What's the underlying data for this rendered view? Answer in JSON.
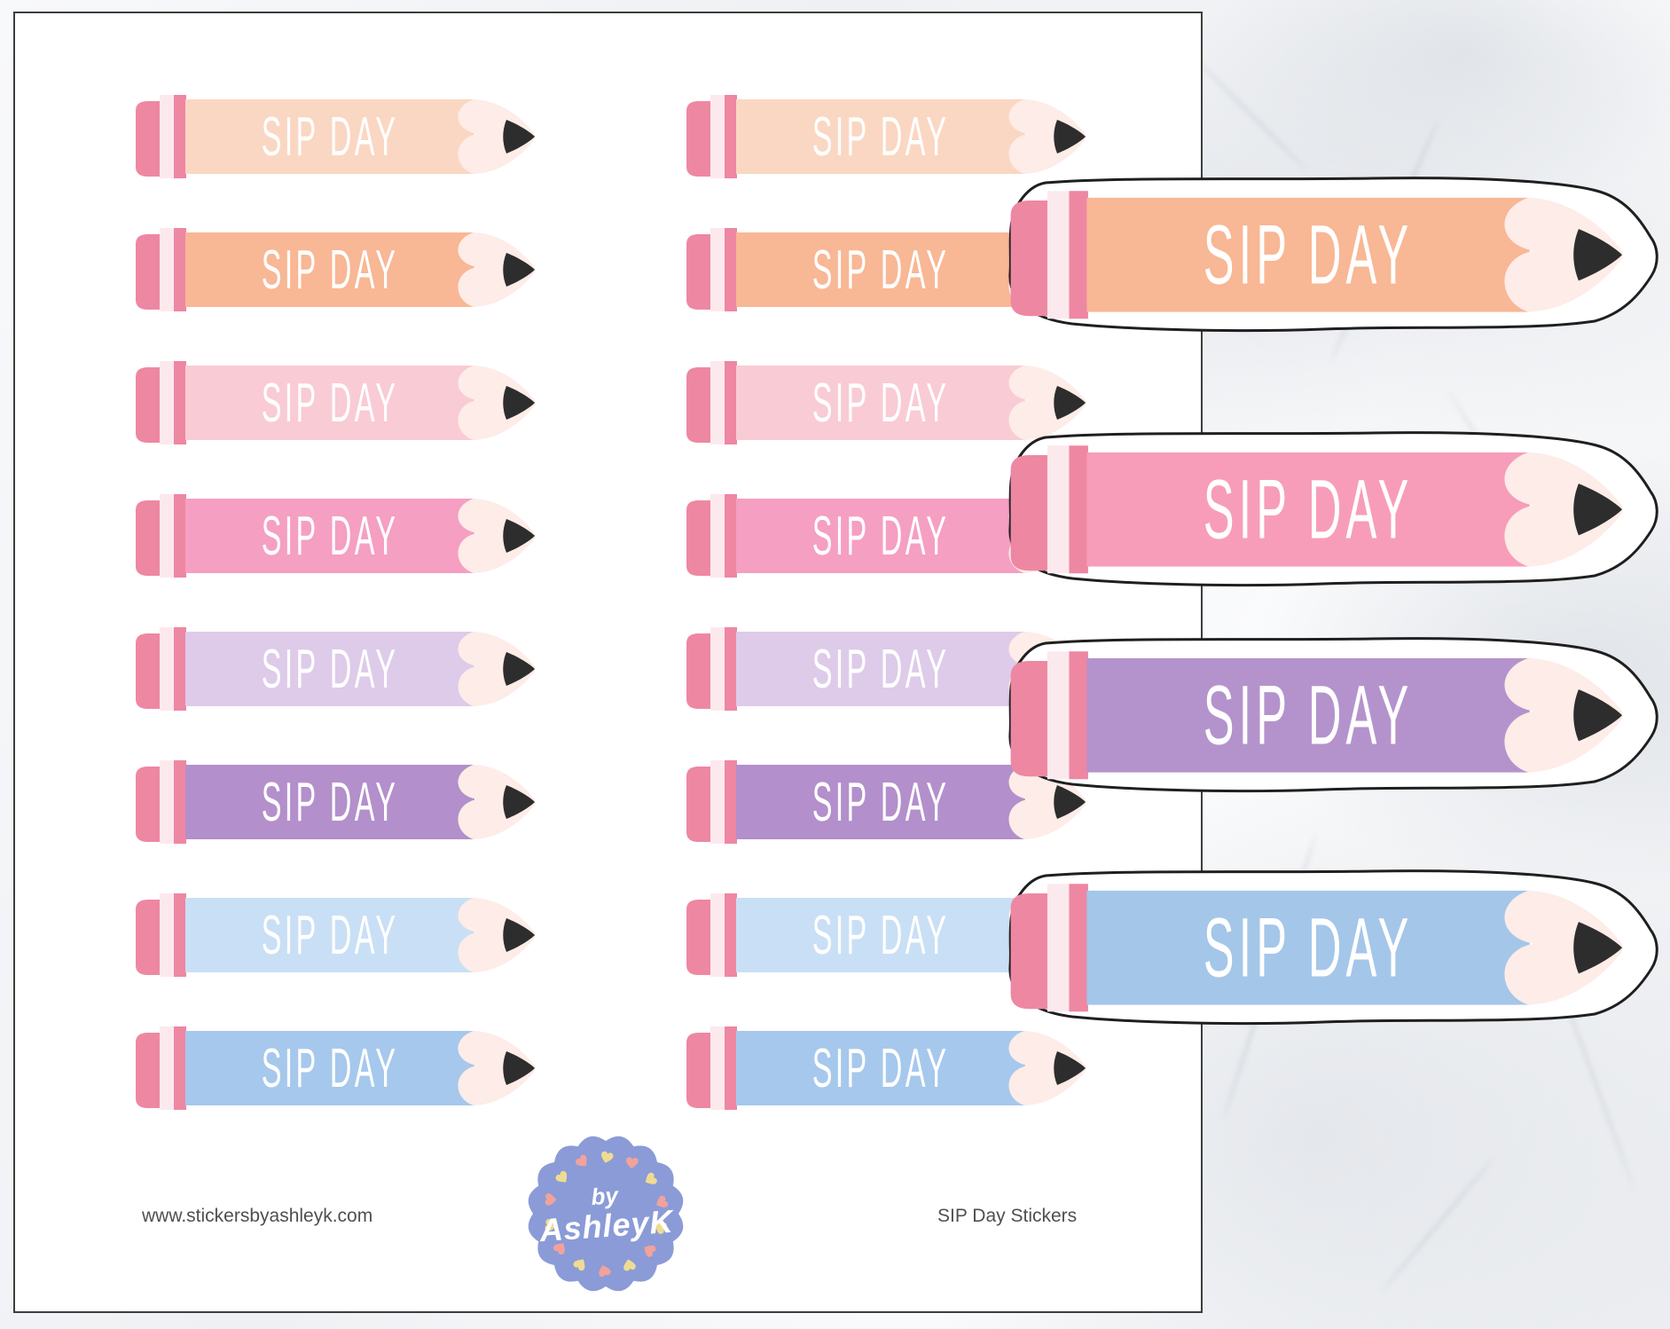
{
  "label": "SIP DAY",
  "pencil_parts": {
    "eraser_color": "#ee87a2",
    "ferrule_light_color": "#fce9ee",
    "wood_color": "#fdece7",
    "lead_color": "#2d2d2d",
    "label_color": "#ffffff"
  },
  "sheet_rows": [
    {
      "name": "light-peach",
      "body_color": "#fad7c2"
    },
    {
      "name": "peach",
      "body_color": "#f8b795"
    },
    {
      "name": "light-pink",
      "body_color": "#f9cbd5"
    },
    {
      "name": "pink",
      "body_color": "#f59fc2"
    },
    {
      "name": "light-lavender",
      "body_color": "#ddcbe9"
    },
    {
      "name": "purple",
      "body_color": "#b38fcb"
    },
    {
      "name": "light-blue",
      "body_color": "#c9dff5"
    },
    {
      "name": "blue",
      "body_color": "#a6c8ec"
    }
  ],
  "cut_stickers": [
    {
      "name": "peach",
      "body_color": "#f8b795"
    },
    {
      "name": "pink",
      "body_color": "#f79db9"
    },
    {
      "name": "purple",
      "body_color": "#b493cd"
    },
    {
      "name": "blue",
      "body_color": "#a4c6e9"
    }
  ],
  "badge": {
    "line1": "by",
    "line2": "AshleyK",
    "background_color": "#8b9bd7",
    "text_color": "#ffffff",
    "heart_colors": [
      "#efdc92",
      "#f2a29b"
    ]
  },
  "footer": {
    "website": "www.stickersbyashleyk.com",
    "product_title": "SIP Day Stickers",
    "text_color": "#4f4f4f"
  }
}
